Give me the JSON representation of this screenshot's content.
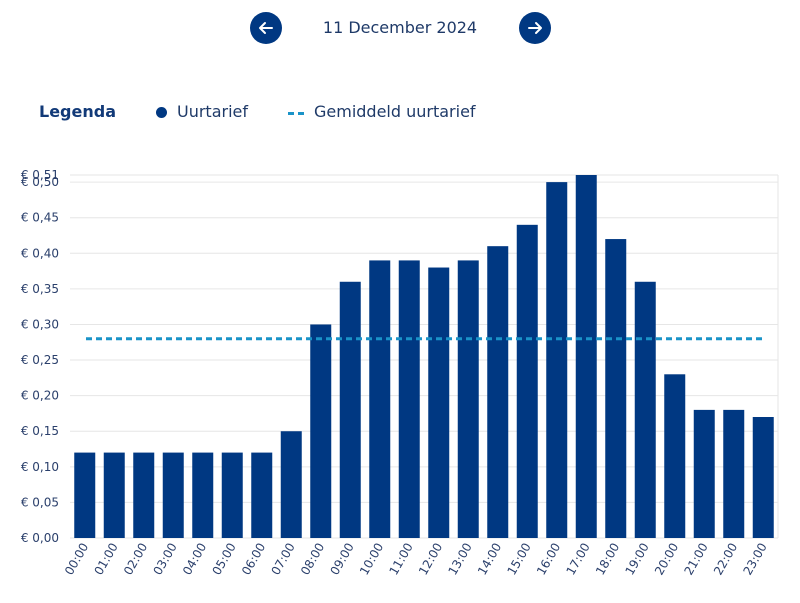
{
  "header": {
    "date": "11 December 2024",
    "prev_icon": "arrow-left-icon",
    "next_icon": "arrow-right-icon"
  },
  "legend": {
    "title": "Legenda",
    "bar_label": "Uurtarief",
    "line_label": "Gemiddeld uurtarief"
  },
  "colors": {
    "bar": "#003882",
    "average_line": "#1a93c8",
    "grid": "#e6e6e6",
    "axis_text": "#2a3f6b"
  },
  "chart_data": {
    "type": "bar",
    "title": "",
    "xlabel": "",
    "ylabel": "",
    "categories": [
      "00:00",
      "01:00",
      "02:00",
      "03:00",
      "04:00",
      "05:00",
      "06:00",
      "07:00",
      "08:00",
      "09:00",
      "10:00",
      "11:00",
      "12:00",
      "13:00",
      "14:00",
      "15:00",
      "16:00",
      "17:00",
      "18:00",
      "19:00",
      "20:00",
      "21:00",
      "22:00",
      "23:00"
    ],
    "series": [
      {
        "name": "Uurtarief",
        "values": [
          0.12,
          0.12,
          0.12,
          0.12,
          0.12,
          0.12,
          0.12,
          0.15,
          0.3,
          0.36,
          0.39,
          0.39,
          0.38,
          0.39,
          0.41,
          0.44,
          0.5,
          0.51,
          0.42,
          0.36,
          0.23,
          0.18,
          0.18,
          0.17
        ]
      },
      {
        "name": "Gemiddeld uurtarief",
        "type": "line",
        "value": 0.28
      }
    ],
    "ylim": [
      0,
      0.51
    ],
    "yticks": [
      "€ 0,00",
      "€ 0,05",
      "€ 0,10",
      "€ 0,15",
      "€ 0,20",
      "€ 0,25",
      "€ 0,30",
      "€ 0,35",
      "€ 0,40",
      "€ 0,45",
      "€ 0,50",
      "€ 0,51"
    ],
    "ytick_values": [
      0,
      0.05,
      0.1,
      0.15,
      0.2,
      0.25,
      0.3,
      0.35,
      0.4,
      0.45,
      0.5,
      0.51
    ],
    "grid": true,
    "legend_position": "top-left"
  }
}
